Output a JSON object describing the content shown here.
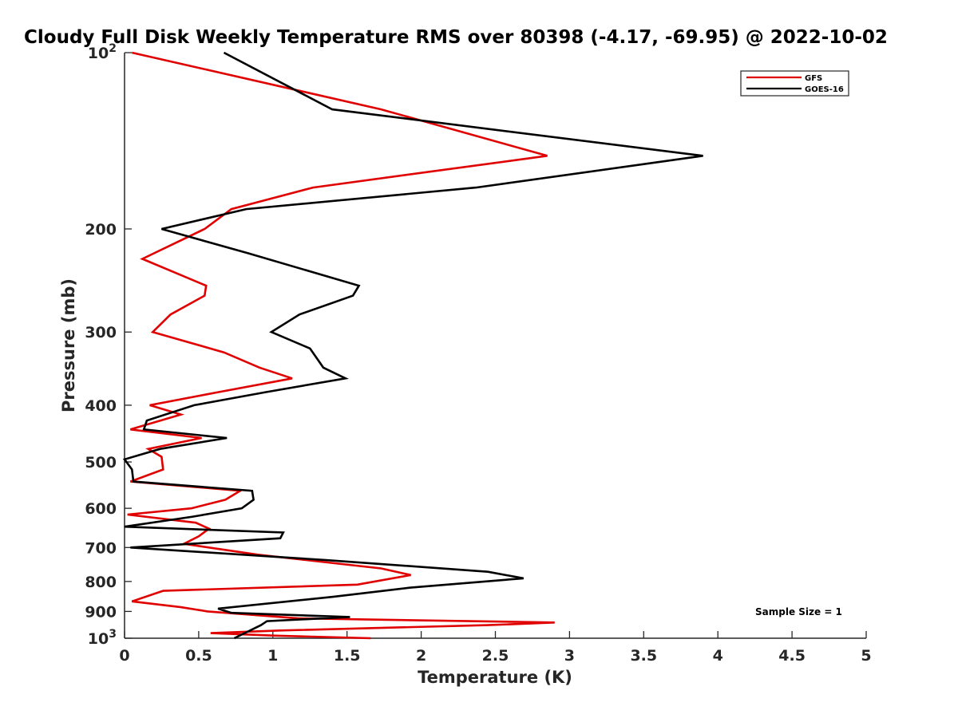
{
  "chart_data": {
    "type": "line",
    "title": "Cloudy Full Disk Weekly Temperature RMS over 80398 (-4.17, -69.95) @ 2022-10-02",
    "xlabel": "Temperature (K)",
    "ylabel": "Pressure (mb)",
    "xlim": [
      0,
      5
    ],
    "ylim": [
      100,
      1000
    ],
    "yscale": "log",
    "y_reversed": true,
    "x_ticks": [
      0,
      0.5,
      1,
      1.5,
      2,
      2.5,
      3,
      3.5,
      4,
      4.5,
      5
    ],
    "x_tick_labels": [
      "0",
      "0.5",
      "1",
      "1.5",
      "2",
      "2.5",
      "3",
      "3.5",
      "4",
      "4.5",
      "5"
    ],
    "y_ticks": [
      {
        "value": 100,
        "base": "10",
        "exp": "2"
      },
      {
        "value": 200,
        "label": "200"
      },
      {
        "value": 300,
        "label": "300"
      },
      {
        "value": 400,
        "label": "400"
      },
      {
        "value": 500,
        "label": "500"
      },
      {
        "value": 600,
        "label": "600"
      },
      {
        "value": 700,
        "label": "700"
      },
      {
        "value": 800,
        "label": "800"
      },
      {
        "value": 900,
        "label": "900"
      },
      {
        "value": 1000,
        "base": "10",
        "exp": "3"
      }
    ],
    "legend_position": "top-right",
    "annotation": "Sample Size = 1",
    "series": [
      {
        "name": "GFS",
        "color": "#e00000",
        "points": [
          [
            0.05,
            100
          ],
          [
            1.73,
            125
          ],
          [
            2.85,
            150
          ],
          [
            1.27,
            170
          ],
          [
            0.72,
            185
          ],
          [
            0.54,
            200
          ],
          [
            0.12,
            225
          ],
          [
            0.55,
            250
          ],
          [
            0.54,
            260
          ],
          [
            0.31,
            280
          ],
          [
            0.19,
            300
          ],
          [
            0.67,
            325
          ],
          [
            0.91,
            345
          ],
          [
            1.13,
            360
          ],
          [
            0.63,
            380
          ],
          [
            0.17,
            400
          ],
          [
            0.38,
            415
          ],
          [
            0.04,
            440
          ],
          [
            0.52,
            455
          ],
          [
            0.16,
            475
          ],
          [
            0.25,
            490
          ],
          [
            0.26,
            515
          ],
          [
            0.04,
            540
          ],
          [
            0.78,
            560
          ],
          [
            0.68,
            580
          ],
          [
            0.45,
            600
          ],
          [
            0.02,
            615
          ],
          [
            0.48,
            635
          ],
          [
            0.57,
            650
          ],
          [
            0.5,
            670
          ],
          [
            0.4,
            690
          ],
          [
            0.9,
            720
          ],
          [
            1.73,
            760
          ],
          [
            1.93,
            780
          ],
          [
            1.57,
            810
          ],
          [
            0.26,
            830
          ],
          [
            0.05,
            865
          ],
          [
            0.38,
            885
          ],
          [
            0.56,
            900
          ],
          [
            1.17,
            925
          ],
          [
            2.9,
            940
          ],
          [
            2.45,
            950
          ],
          [
            1.05,
            970
          ],
          [
            0.58,
            980
          ],
          [
            1.02,
            990
          ],
          [
            1.66,
            1000
          ]
        ]
      },
      {
        "name": "GOES-16",
        "color": "#000000",
        "points": [
          [
            0.67,
            100
          ],
          [
            1.4,
            125
          ],
          [
            3.9,
            150
          ],
          [
            2.37,
            170
          ],
          [
            0.82,
            185
          ],
          [
            0.25,
            200
          ],
          [
            0.83,
            220
          ],
          [
            1.58,
            250
          ],
          [
            1.54,
            260
          ],
          [
            1.18,
            280
          ],
          [
            0.99,
            300
          ],
          [
            1.25,
            320
          ],
          [
            1.34,
            345
          ],
          [
            1.49,
            360
          ],
          [
            0.95,
            380
          ],
          [
            0.47,
            400
          ],
          [
            0.15,
            425
          ],
          [
            0.13,
            440
          ],
          [
            0.69,
            455
          ],
          [
            0.24,
            475
          ],
          [
            0.0,
            495
          ],
          [
            0.05,
            515
          ],
          [
            0.06,
            540
          ],
          [
            0.86,
            560
          ],
          [
            0.87,
            580
          ],
          [
            0.79,
            600
          ],
          [
            0.46,
            620
          ],
          [
            0.0,
            645
          ],
          [
            1.07,
            660
          ],
          [
            1.05,
            675
          ],
          [
            0.04,
            700
          ],
          [
            1.35,
            735
          ],
          [
            2.45,
            770
          ],
          [
            2.69,
            790
          ],
          [
            1.92,
            820
          ],
          [
            1.4,
            850
          ],
          [
            0.63,
            890
          ],
          [
            0.72,
            905
          ],
          [
            1.52,
            920
          ],
          [
            0.96,
            935
          ],
          [
            0.92,
            950
          ],
          [
            0.74,
            1000
          ]
        ]
      }
    ]
  }
}
